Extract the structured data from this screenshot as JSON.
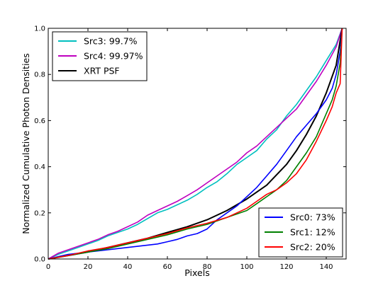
{
  "chart_data": {
    "type": "line",
    "title": "",
    "xlabel": "Pixels",
    "ylabel": "Normalized Cumulative Photon Densities",
    "xlim": [
      0,
      150
    ],
    "ylim": [
      0.0,
      1.0
    ],
    "x_ticks": [
      "0",
      "20",
      "40",
      "60",
      "80",
      "100",
      "120",
      "140"
    ],
    "y_ticks": [
      "0.0",
      "0.2",
      "0.4",
      "0.6",
      "0.8",
      "1.0"
    ],
    "grid": false,
    "legends": [
      {
        "placement": "upper-left",
        "entries": [
          "Src3: 99.7%",
          "Src4: 99.97%",
          "XRT PSF"
        ]
      },
      {
        "placement": "lower-right",
        "entries": [
          "Src0: 73%",
          "Src1: 12%",
          "Src2: 20%"
        ]
      }
    ],
    "series": [
      {
        "name": "Src3: 99.7%",
        "color": "#00bfbf",
        "x": [
          0,
          5,
          10,
          15,
          20,
          25,
          30,
          35,
          40,
          45,
          50,
          55,
          60,
          65,
          70,
          75,
          80,
          85,
          90,
          95,
          100,
          105,
          110,
          115,
          120,
          125,
          130,
          135,
          140,
          145,
          148
        ],
        "y": [
          0.0,
          0.02,
          0.035,
          0.05,
          0.065,
          0.08,
          0.1,
          0.115,
          0.13,
          0.15,
          0.175,
          0.2,
          0.215,
          0.235,
          0.255,
          0.28,
          0.31,
          0.335,
          0.37,
          0.41,
          0.44,
          0.47,
          0.52,
          0.56,
          0.62,
          0.67,
          0.73,
          0.79,
          0.86,
          0.93,
          1.0
        ]
      },
      {
        "name": "Src4: 99.97%",
        "color": "#bf00bf",
        "x": [
          0,
          5,
          10,
          15,
          20,
          25,
          30,
          35,
          40,
          45,
          50,
          55,
          60,
          65,
          70,
          75,
          80,
          85,
          90,
          95,
          100,
          105,
          110,
          115,
          120,
          125,
          130,
          135,
          140,
          145,
          148
        ],
        "y": [
          0.0,
          0.025,
          0.04,
          0.055,
          0.07,
          0.085,
          0.105,
          0.12,
          0.14,
          0.16,
          0.19,
          0.21,
          0.23,
          0.25,
          0.275,
          0.3,
          0.33,
          0.36,
          0.39,
          0.42,
          0.46,
          0.49,
          0.53,
          0.57,
          0.61,
          0.65,
          0.71,
          0.77,
          0.84,
          0.92,
          1.0
        ]
      },
      {
        "name": "XRT PSF",
        "color": "#000000",
        "x": [
          0,
          10,
          20,
          30,
          40,
          50,
          60,
          70,
          80,
          90,
          100,
          110,
          120,
          125,
          130,
          135,
          140,
          145,
          148
        ],
        "y": [
          0.0,
          0.015,
          0.03,
          0.05,
          0.07,
          0.09,
          0.115,
          0.14,
          0.17,
          0.21,
          0.26,
          0.32,
          0.41,
          0.47,
          0.54,
          0.62,
          0.72,
          0.84,
          1.0
        ]
      },
      {
        "name": "Src0: 73%",
        "color": "#0000ff",
        "x": [
          0,
          5,
          10,
          15,
          20,
          25,
          30,
          35,
          40,
          45,
          50,
          55,
          60,
          65,
          70,
          75,
          80,
          85,
          90,
          95,
          100,
          105,
          110,
          115,
          120,
          125,
          130,
          135,
          140,
          143,
          145,
          147,
          148
        ],
        "y": [
          0.0,
          0.01,
          0.02,
          0.025,
          0.03,
          0.035,
          0.04,
          0.045,
          0.05,
          0.055,
          0.06,
          0.065,
          0.075,
          0.085,
          0.1,
          0.11,
          0.13,
          0.17,
          0.2,
          0.23,
          0.27,
          0.31,
          0.36,
          0.41,
          0.47,
          0.53,
          0.58,
          0.63,
          0.69,
          0.74,
          0.8,
          0.9,
          1.0
        ]
      },
      {
        "name": "Src1: 12%",
        "color": "#008000",
        "x": [
          0,
          10,
          20,
          30,
          40,
          50,
          60,
          70,
          80,
          90,
          100,
          105,
          110,
          115,
          120,
          125,
          130,
          135,
          140,
          143,
          145,
          147,
          148
        ],
        "y": [
          0.0,
          0.015,
          0.03,
          0.045,
          0.065,
          0.085,
          0.105,
          0.13,
          0.15,
          0.18,
          0.21,
          0.24,
          0.27,
          0.3,
          0.34,
          0.4,
          0.46,
          0.53,
          0.63,
          0.69,
          0.75,
          0.85,
          1.0
        ]
      },
      {
        "name": "Src2: 20%",
        "color": "#ff0000",
        "x": [
          0,
          10,
          20,
          30,
          40,
          50,
          60,
          70,
          80,
          90,
          100,
          105,
          110,
          115,
          120,
          125,
          130,
          135,
          140,
          143,
          145,
          147,
          148
        ],
        "y": [
          0.0,
          0.015,
          0.035,
          0.05,
          0.07,
          0.09,
          0.11,
          0.135,
          0.155,
          0.18,
          0.22,
          0.25,
          0.28,
          0.3,
          0.33,
          0.37,
          0.43,
          0.51,
          0.6,
          0.66,
          0.72,
          0.76,
          1.0
        ]
      }
    ]
  }
}
